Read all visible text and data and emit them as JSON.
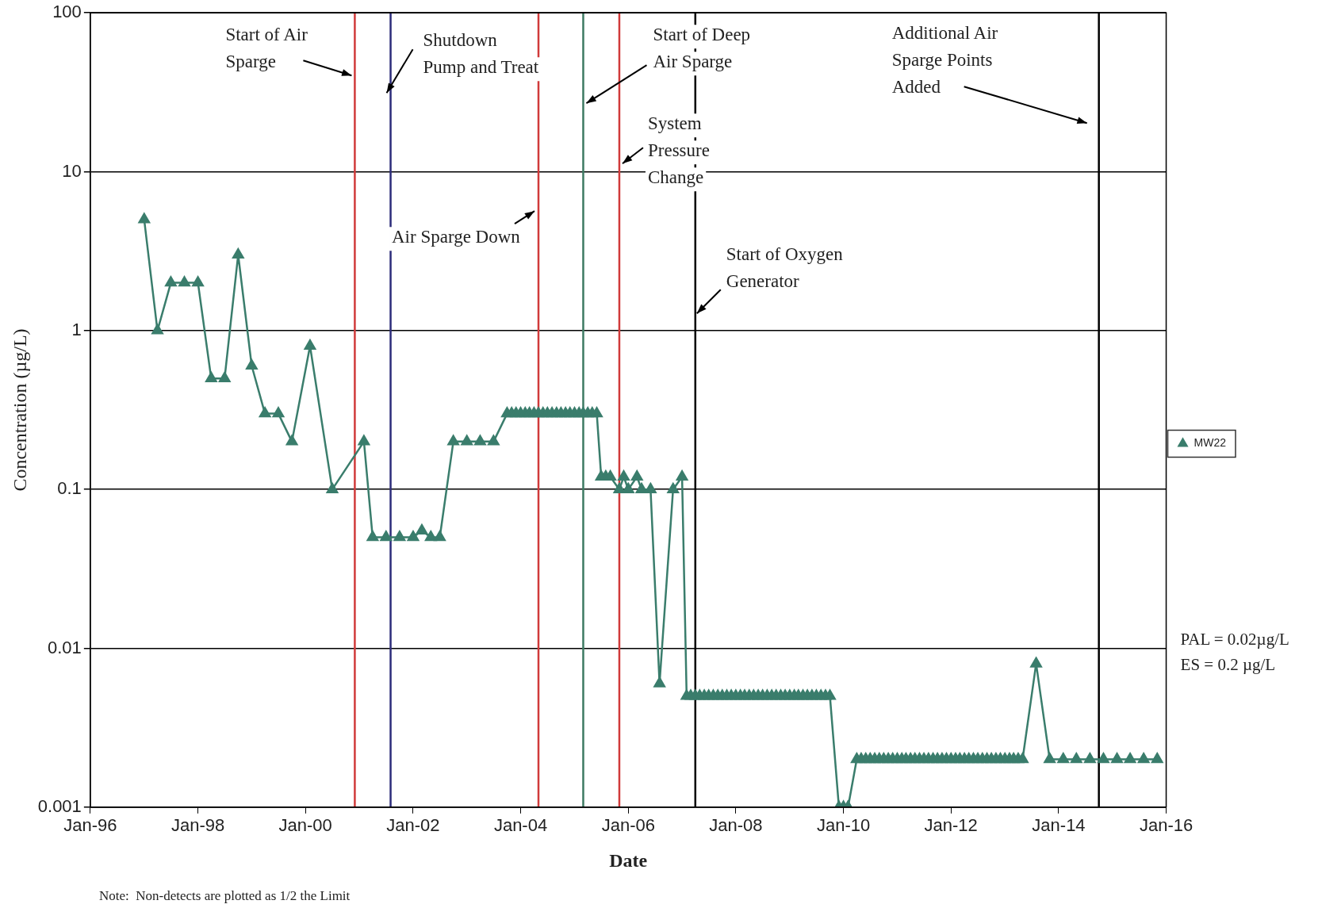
{
  "chart_data": {
    "type": "line",
    "xlabel": "Date",
    "ylabel": "Concentration (µg/L)",
    "log": "y",
    "grid": "y",
    "legend": "right",
    "marker": "triangle",
    "line_style": "solid",
    "ylim": [
      0.001,
      100
    ],
    "yticks": [
      0.001,
      0.01,
      0.1,
      1,
      10,
      100
    ],
    "xlim": [
      "1996-01",
      "2016-01"
    ],
    "xticks": [
      {
        "value": "1996-01",
        "label": "Jan-96"
      },
      {
        "value": "1998-01",
        "label": "Jan-98"
      },
      {
        "value": "2000-01",
        "label": "Jan-00"
      },
      {
        "value": "2002-01",
        "label": "Jan-02"
      },
      {
        "value": "2004-01",
        "label": "Jan-04"
      },
      {
        "value": "2006-01",
        "label": "Jan-06"
      },
      {
        "value": "2008-01",
        "label": "Jan-08"
      },
      {
        "value": "2010-01",
        "label": "Jan-10"
      },
      {
        "value": "2012-01",
        "label": "Jan-12"
      },
      {
        "value": "2014-01",
        "label": "Jan-14"
      },
      {
        "value": "2016-01",
        "label": "Jan-16"
      }
    ],
    "series": [
      {
        "name": "MW22",
        "color": "#3a7d6c",
        "x": [
          "1997-01",
          "1997-04",
          "1997-07",
          "1997-10",
          "1998-01",
          "1998-04",
          "1998-07",
          "1998-10",
          "1999-01",
          "1999-04",
          "1999-07",
          "1999-10",
          "2000-02",
          "2000-07",
          "2001-02",
          "2001-04",
          "2001-07",
          "2001-10",
          "2002-01",
          "2002-03",
          "2002-05",
          "2002-07",
          "2002-10",
          "2003-01",
          "2003-04",
          "2003-07",
          "2003-10",
          "2003-11",
          "2003-12",
          "2004-01",
          "2004-02",
          "2004-03",
          "2004-04",
          "2004-05",
          "2004-06",
          "2004-07",
          "2004-08",
          "2004-09",
          "2004-10",
          "2004-11",
          "2004-12",
          "2005-01",
          "2005-02",
          "2005-03",
          "2005-04",
          "2005-05",
          "2005-06",
          "2005-07",
          "2005-08",
          "2005-09",
          "2005-11",
          "2005-12",
          "2006-01",
          "2006-03",
          "2006-04",
          "2006-06",
          "2006-08",
          "2006-11",
          "2007-01",
          "2007-02",
          "2007-03",
          "2007-04",
          "2007-05",
          "2007-06",
          "2007-07",
          "2007-08",
          "2007-09",
          "2007-10",
          "2007-11",
          "2007-12",
          "2008-01",
          "2008-02",
          "2008-03",
          "2008-04",
          "2008-05",
          "2008-06",
          "2008-07",
          "2008-08",
          "2008-09",
          "2008-10",
          "2008-11",
          "2008-12",
          "2009-01",
          "2009-02",
          "2009-03",
          "2009-04",
          "2009-05",
          "2009-06",
          "2009-07",
          "2009-08",
          "2009-09",
          "2009-10",
          "2009-12",
          "2010-01",
          "2010-02",
          "2010-04",
          "2010-05",
          "2010-06",
          "2010-07",
          "2010-08",
          "2010-09",
          "2010-10",
          "2010-11",
          "2010-12",
          "2011-01",
          "2011-02",
          "2011-03",
          "2011-04",
          "2011-05",
          "2011-06",
          "2011-07",
          "2011-08",
          "2011-09",
          "2011-10",
          "2011-11",
          "2011-12",
          "2012-01",
          "2012-02",
          "2012-03",
          "2012-04",
          "2012-05",
          "2012-06",
          "2012-07",
          "2012-08",
          "2012-09",
          "2012-10",
          "2012-11",
          "2012-12",
          "2013-01",
          "2013-02",
          "2013-03",
          "2013-04",
          "2013-05",
          "2013-08",
          "2013-11",
          "2014-02",
          "2014-05",
          "2014-08",
          "2014-11",
          "2015-02",
          "2015-05",
          "2015-08",
          "2015-11"
        ],
        "values": [
          5,
          1,
          2,
          2,
          2,
          0.5,
          0.5,
          3,
          0.6,
          0.3,
          0.3,
          0.2,
          0.8,
          0.1,
          0.2,
          0.05,
          0.05,
          0.05,
          0.05,
          0.055,
          0.05,
          0.05,
          0.2,
          0.2,
          0.2,
          0.2,
          0.3,
          0.3,
          0.3,
          0.3,
          0.3,
          0.3,
          0.3,
          0.3,
          0.3,
          0.3,
          0.3,
          0.3,
          0.3,
          0.3,
          0.3,
          0.3,
          0.3,
          0.3,
          0.3,
          0.3,
          0.3,
          0.12,
          0.12,
          0.12,
          0.1,
          0.12,
          0.1,
          0.12,
          0.1,
          0.1,
          0.006,
          0.1,
          0.12,
          0.005,
          0.005,
          0.005,
          0.005,
          0.005,
          0.005,
          0.005,
          0.005,
          0.005,
          0.005,
          0.005,
          0.005,
          0.005,
          0.005,
          0.005,
          0.005,
          0.005,
          0.005,
          0.005,
          0.005,
          0.005,
          0.005,
          0.005,
          0.005,
          0.005,
          0.005,
          0.005,
          0.005,
          0.005,
          0.005,
          0.005,
          0.005,
          0.005,
          0.001,
          0.001,
          0.001,
          0.002,
          0.002,
          0.002,
          0.002,
          0.002,
          0.002,
          0.002,
          0.002,
          0.002,
          0.002,
          0.002,
          0.002,
          0.002,
          0.002,
          0.002,
          0.002,
          0.002,
          0.002,
          0.002,
          0.002,
          0.002,
          0.002,
          0.002,
          0.002,
          0.002,
          0.002,
          0.002,
          0.002,
          0.002,
          0.002,
          0.002,
          0.002,
          0.002,
          0.002,
          0.002,
          0.002,
          0.002,
          0.002,
          0.008,
          0.002,
          0.002,
          0.002,
          0.002,
          0.002,
          0.002,
          0.002,
          0.002,
          0.002
        ]
      }
    ],
    "ref_lines": [
      {
        "axis": "x",
        "value": "2000-12",
        "label": "Start of Air\nSparge",
        "color": "#d03a3a"
      },
      {
        "axis": "x",
        "value": "2001-08",
        "label": "Shutdown\nPump and Treat",
        "color": "#2c2c7a"
      },
      {
        "axis": "x",
        "value": "2004-05",
        "label": "Air Sparge Down",
        "color": "#d03a3a"
      },
      {
        "axis": "x",
        "value": "2005-03",
        "label": "Start of Deep\nAir Sparge",
        "color": "#3d7a62"
      },
      {
        "axis": "x",
        "value": "2005-11",
        "label": "System\nPressure\nChange",
        "color": "#d03a3a"
      },
      {
        "axis": "x",
        "value": "2007-04",
        "label": "Start of Oxygen\nGenerator",
        "color": "#000000"
      },
      {
        "axis": "x",
        "value": "2014-10",
        "label": "Additional Air\nSparge Points\nAdded",
        "color": "#000000"
      }
    ],
    "annotations": [
      "Note:  Non-detects are plotted as 1/2 the Limit",
      "PAL = 0.02µg/L",
      "ES = 0.2 µg/L"
    ]
  }
}
